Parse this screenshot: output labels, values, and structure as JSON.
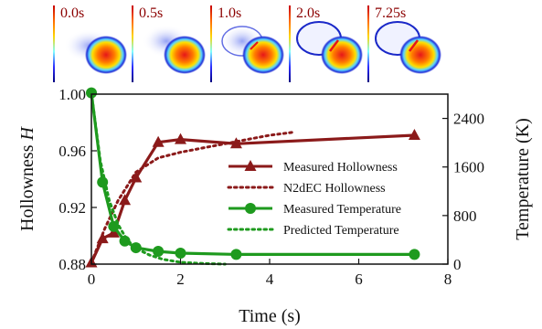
{
  "frames": [
    {
      "label": "0.0s"
    },
    {
      "label": "0.5s"
    },
    {
      "label": "1.0s"
    },
    {
      "label": "2.0s"
    },
    {
      "label": "7.25s"
    }
  ],
  "chart_data": {
    "type": "line",
    "xlabel": "Time (s)",
    "ylabel_left": "Hollowness H",
    "ylabel_right": "Temperature (K)",
    "xlim": [
      0,
      8
    ],
    "ylim_left": [
      0.88,
      1.0
    ],
    "ylim_right": [
      0,
      2800
    ],
    "x_ticks": [
      "0",
      "2",
      "4",
      "6",
      "8"
    ],
    "y_left_ticks": [
      "0.88",
      "0.92",
      "0.96",
      "1.00"
    ],
    "y_right_ticks": [
      "0",
      "800",
      "1600",
      "2400"
    ],
    "colors": {
      "hollowness": "#8b1a1a",
      "temperature": "#1e9a1e"
    },
    "series": [
      {
        "name": "Measured Hollowness",
        "axis": "left",
        "style": "solid",
        "marker": "triangle",
        "x": [
          0,
          0.25,
          0.5,
          0.75,
          1.0,
          1.5,
          2.0,
          3.25,
          7.25
        ],
        "y": [
          0.881,
          0.898,
          0.902,
          0.925,
          0.941,
          0.966,
          0.968,
          0.965,
          0.971
        ]
      },
      {
        "name": "N2dEC Hollowness",
        "axis": "left",
        "style": "dotted",
        "x": [
          0,
          0.3,
          0.6,
          1.0,
          1.5,
          2.0,
          2.5,
          3.0,
          3.5,
          4.0,
          4.5
        ],
        "y": [
          0.881,
          0.905,
          0.925,
          0.945,
          0.955,
          0.959,
          0.962,
          0.965,
          0.968,
          0.971,
          0.973
        ]
      },
      {
        "name": "Measured Temperature",
        "axis": "right",
        "style": "solid",
        "marker": "circle",
        "x": [
          0,
          0.25,
          0.5,
          0.75,
          1.0,
          1.5,
          2.0,
          3.25,
          7.25
        ],
        "y": [
          2820,
          1350,
          620,
          380,
          270,
          210,
          180,
          160,
          160
        ]
      },
      {
        "name": "Predicted Temperature",
        "axis": "right",
        "style": "dotted",
        "x": [
          0,
          0.2,
          0.4,
          0.6,
          0.8,
          1.0,
          1.3,
          1.6,
          2.0,
          2.5,
          3.0
        ],
        "y": [
          2820,
          1700,
          1050,
          650,
          400,
          260,
          150,
          80,
          30,
          10,
          0
        ]
      }
    ],
    "legend": [
      "Measured Hollowness",
      "N2dEC Hollowness",
      "Measured Temperature",
      "Predicted Temperature"
    ]
  }
}
